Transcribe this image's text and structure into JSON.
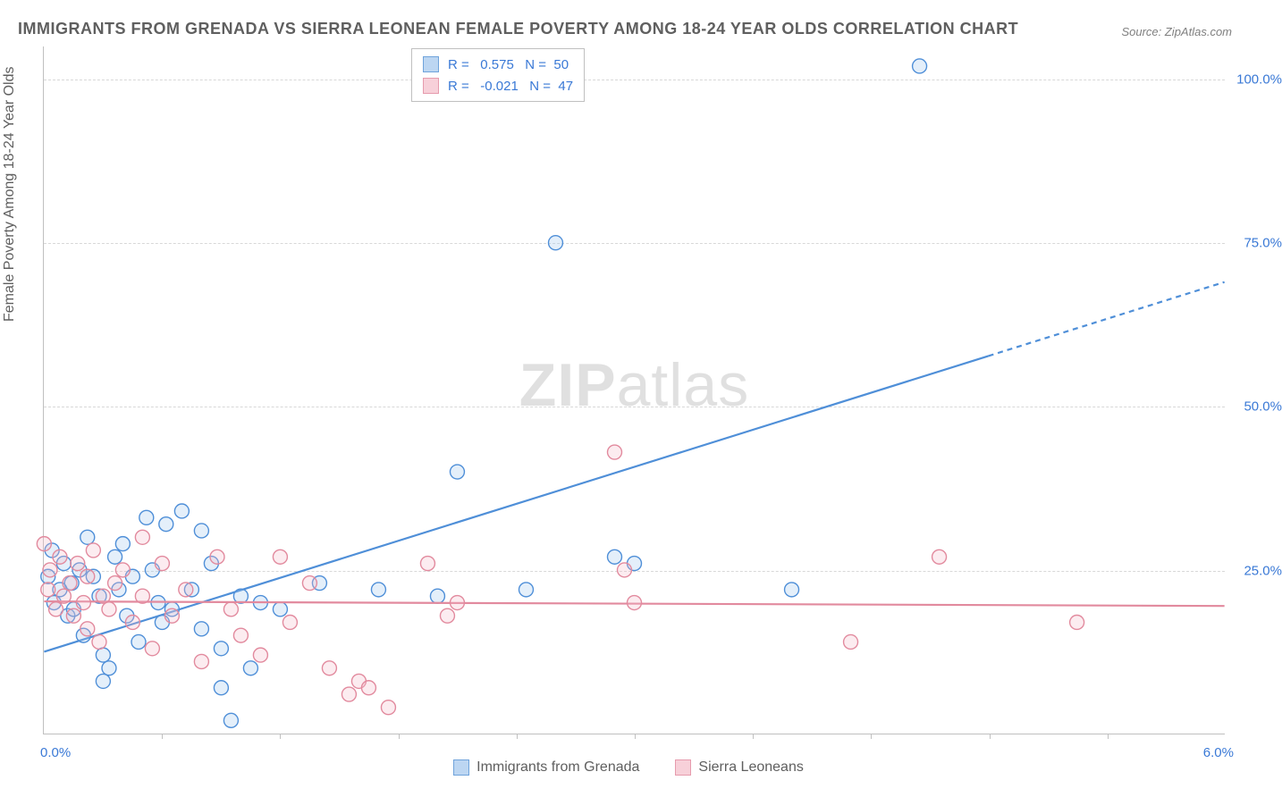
{
  "title": "IMMIGRANTS FROM GRENADA VS SIERRA LEONEAN FEMALE POVERTY AMONG 18-24 YEAR OLDS CORRELATION CHART",
  "source": "Source: ZipAtlas.com",
  "watermark": "ZIPatlas",
  "ylabel": "Female Poverty Among 18-24 Year Olds",
  "chart": {
    "type": "scatter",
    "xlim": [
      0,
      6
    ],
    "ylim": [
      0,
      105
    ],
    "xtick_labels": {
      "min": "0.0%",
      "max": "6.0%"
    },
    "xtick_marks": [
      0.6,
      1.2,
      1.8,
      2.4,
      3.0,
      3.6,
      4.2,
      4.8,
      5.4
    ],
    "ytick_values": [
      25,
      50,
      75,
      100
    ],
    "ytick_labels": [
      "25.0%",
      "50.0%",
      "75.0%",
      "100.0%"
    ],
    "background_color": "#ffffff",
    "grid_color": "#d8d8d8",
    "axis_color": "#c0c0c0",
    "marker_radius": 8,
    "marker_stroke_width": 1.4,
    "marker_fill_opacity": 0.28,
    "trendline_width": 2.2,
    "series": [
      {
        "name": "Immigrants from Grenada",
        "color_fill": "#9ec5ec",
        "color_stroke": "#4f8fd8",
        "swatch_fill": "#bcd6f2",
        "swatch_stroke": "#6fa3db",
        "R": 0.575,
        "N": 50,
        "trendline": {
          "x1": 0.0,
          "y1": 12.5,
          "x2": 6.0,
          "y2": 69.0,
          "solid_until_x": 4.8
        },
        "points": [
          [
            0.02,
            24
          ],
          [
            0.04,
            28
          ],
          [
            0.05,
            20
          ],
          [
            0.08,
            22
          ],
          [
            0.1,
            26
          ],
          [
            0.12,
            18
          ],
          [
            0.15,
            19
          ],
          [
            0.18,
            25
          ],
          [
            0.2,
            15
          ],
          [
            0.22,
            30
          ],
          [
            0.25,
            24
          ],
          [
            0.28,
            21
          ],
          [
            0.3,
            12
          ],
          [
            0.33,
            10
          ],
          [
            0.36,
            27
          ],
          [
            0.38,
            22
          ],
          [
            0.4,
            29
          ],
          [
            0.42,
            18
          ],
          [
            0.45,
            24
          ],
          [
            0.48,
            14
          ],
          [
            0.52,
            33
          ],
          [
            0.55,
            25
          ],
          [
            0.58,
            20
          ],
          [
            0.62,
            32
          ],
          [
            0.65,
            19
          ],
          [
            0.7,
            34
          ],
          [
            0.75,
            22
          ],
          [
            0.8,
            16
          ],
          [
            0.85,
            26
          ],
          [
            0.9,
            13
          ],
          [
            0.95,
            2
          ],
          [
            1.0,
            21
          ],
          [
            1.05,
            10
          ],
          [
            1.1,
            20
          ],
          [
            1.2,
            19
          ],
          [
            1.4,
            23
          ],
          [
            1.7,
            22
          ],
          [
            2.0,
            21
          ],
          [
            2.1,
            40
          ],
          [
            2.45,
            22
          ],
          [
            2.6,
            75
          ],
          [
            2.9,
            27
          ],
          [
            3.0,
            26
          ],
          [
            3.8,
            22
          ],
          [
            4.45,
            102
          ],
          [
            0.3,
            8
          ],
          [
            0.14,
            23
          ],
          [
            0.6,
            17
          ],
          [
            0.8,
            31
          ],
          [
            0.9,
            7
          ]
        ]
      },
      {
        "name": "Sierra Leoneans",
        "color_fill": "#f4bcc8",
        "color_stroke": "#e28a9e",
        "swatch_fill": "#f7d0d9",
        "swatch_stroke": "#e69bad",
        "R": -0.021,
        "N": 47,
        "trendline": {
          "x1": 0.0,
          "y1": 20.2,
          "x2": 6.0,
          "y2": 19.5,
          "solid_until_x": 6.0
        },
        "points": [
          [
            0.0,
            29
          ],
          [
            0.02,
            22
          ],
          [
            0.03,
            25
          ],
          [
            0.06,
            19
          ],
          [
            0.08,
            27
          ],
          [
            0.1,
            21
          ],
          [
            0.13,
            23
          ],
          [
            0.15,
            18
          ],
          [
            0.17,
            26
          ],
          [
            0.2,
            20
          ],
          [
            0.22,
            16
          ],
          [
            0.25,
            28
          ],
          [
            0.28,
            14
          ],
          [
            0.3,
            21
          ],
          [
            0.33,
            19
          ],
          [
            0.36,
            23
          ],
          [
            0.4,
            25
          ],
          [
            0.45,
            17
          ],
          [
            0.5,
            30
          ],
          [
            0.55,
            13
          ],
          [
            0.6,
            26
          ],
          [
            0.65,
            18
          ],
          [
            0.72,
            22
          ],
          [
            0.8,
            11
          ],
          [
            0.88,
            27
          ],
          [
            0.95,
            19
          ],
          [
            1.0,
            15
          ],
          [
            1.1,
            12
          ],
          [
            1.2,
            27
          ],
          [
            1.25,
            17
          ],
          [
            1.35,
            23
          ],
          [
            1.45,
            10
          ],
          [
            1.55,
            6
          ],
          [
            1.6,
            8
          ],
          [
            1.65,
            7
          ],
          [
            1.75,
            4
          ],
          [
            1.95,
            26
          ],
          [
            2.05,
            18
          ],
          [
            2.1,
            20
          ],
          [
            2.9,
            43
          ],
          [
            2.95,
            25
          ],
          [
            3.0,
            20
          ],
          [
            4.1,
            14
          ],
          [
            4.55,
            27
          ],
          [
            5.25,
            17
          ],
          [
            0.5,
            21
          ],
          [
            0.22,
            24
          ]
        ]
      }
    ]
  },
  "legend_bottom": [
    {
      "label": "Immigrants from Grenada",
      "fill": "#bcd6f2",
      "stroke": "#6fa3db"
    },
    {
      "label": "Sierra Leoneans",
      "fill": "#f7d0d9",
      "stroke": "#e69bad"
    }
  ],
  "colors": {
    "title_text": "#5f5f5f",
    "source_text": "#808080",
    "tick_text": "#3a79d6"
  }
}
